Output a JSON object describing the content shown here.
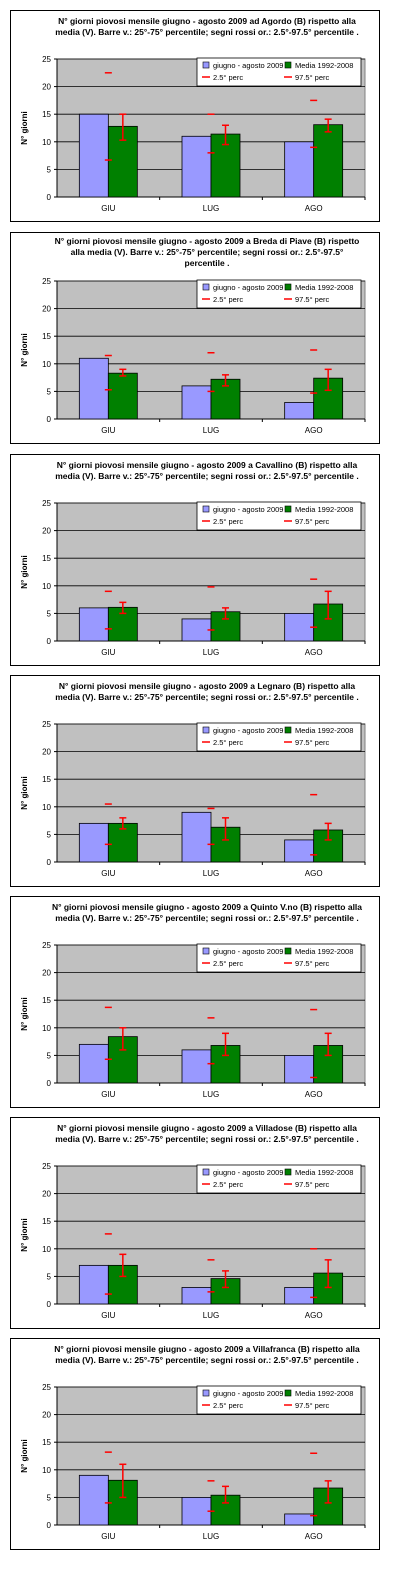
{
  "colors": {
    "plot_bg": "#c0c0c0",
    "bar_2009": "#9999ff",
    "bar_media": "#008000",
    "whisker": "#ff0000",
    "grid": "#000000"
  },
  "legend": {
    "series_2009": "giugno - agosto 2009",
    "series_media": "Media 1992-2008",
    "p25": "2.5° perc",
    "p975": "97.5° perc"
  },
  "chart_data": [
    {
      "type": "bar",
      "title_lines": [
        "N° giorni piovosi mensile giugno - agosto 2009 ad Agordo (B) rispetto alla",
        "media (V). Barre v.: 25°-75° percentile; segni rossi or.: 2.5°-97.5° percentile ."
      ],
      "ylabel": "N° giorni",
      "ylim": [
        0,
        25
      ],
      "yticks": [
        "0",
        "5",
        "10",
        "15",
        "20",
        "25"
      ],
      "categories": [
        "GIU",
        "LUG",
        "AGO"
      ],
      "series": [
        {
          "name": "giugno - agosto 2009",
          "values": [
            15,
            11,
            10
          ]
        },
        {
          "name": "Media 1992-2008",
          "values": [
            12.8,
            11.4,
            13.1
          ]
        }
      ],
      "p25_75": [
        [
          10.3,
          15.0
        ],
        [
          9.5,
          13.0
        ],
        [
          11.8,
          14.1
        ]
      ],
      "p2_5": [
        6.7,
        8.0,
        9.0
      ],
      "p97_5": [
        22.5,
        15.0,
        17.5
      ]
    },
    {
      "type": "bar",
      "title_lines": [
        "N° giorni piovosi mensile giugno - agosto 2009 a Breda di Piave (B) rispetto",
        "alla media (V). Barre v.: 25°-75° percentile; segni rossi or.: 2.5°-97.5°",
        "percentile ."
      ],
      "ylabel": "N° giorni",
      "ylim": [
        0,
        25
      ],
      "yticks": [
        "0",
        "5",
        "10",
        "15",
        "20",
        "25"
      ],
      "categories": [
        "GIU",
        "LUG",
        "AGO"
      ],
      "series": [
        {
          "name": "giugno - agosto 2009",
          "values": [
            11,
            6,
            3
          ]
        },
        {
          "name": "Media 1992-2008",
          "values": [
            8.3,
            7.2,
            7.4
          ]
        }
      ],
      "p25_75": [
        [
          7.8,
          9.0
        ],
        [
          6.0,
          8.0
        ],
        [
          5.2,
          9.0
        ]
      ],
      "p2_5": [
        5.3,
        5.0,
        4.7
      ],
      "p97_5": [
        11.5,
        12.0,
        12.5
      ]
    },
    {
      "type": "bar",
      "title_lines": [
        "N° giorni piovosi mensile giugno - agosto 2009 a Cavallino (B) rispetto alla",
        "media (V). Barre v.: 25°-75° percentile; segni rossi or.: 2.5°-97.5° percentile ."
      ],
      "ylabel": "N° giorni",
      "ylim": [
        0,
        25
      ],
      "yticks": [
        "0",
        "5",
        "10",
        "15",
        "20",
        "25"
      ],
      "categories": [
        "GIU",
        "LUG",
        "AGO"
      ],
      "series": [
        {
          "name": "giugno - agosto 2009",
          "values": [
            6,
            4,
            5
          ]
        },
        {
          "name": "Media 1992-2008",
          "values": [
            6.1,
            5.3,
            6.7
          ]
        }
      ],
      "p25_75": [
        [
          5.0,
          7.0
        ],
        [
          4.0,
          6.0
        ],
        [
          4.0,
          9.0
        ]
      ],
      "p2_5": [
        2.2,
        2.0,
        2.5
      ],
      "p97_5": [
        9.0,
        9.8,
        11.2
      ]
    },
    {
      "type": "bar",
      "title_lines": [
        "N° giorni piovosi mensile giugno - agosto 2009 a Legnaro (B) rispetto alla",
        "media (V). Barre v.: 25°-75° percentile; segni rossi or.: 2.5°-97.5° percentile ."
      ],
      "ylabel": "N° giorni",
      "ylim": [
        0,
        25
      ],
      "yticks": [
        "0",
        "5",
        "10",
        "15",
        "20",
        "25"
      ],
      "categories": [
        "GIU",
        "LUG",
        "AGO"
      ],
      "series": [
        {
          "name": "giugno - agosto 2009",
          "values": [
            7,
            9,
            4
          ]
        },
        {
          "name": "Media 1992-2008",
          "values": [
            7.0,
            6.3,
            5.8
          ]
        }
      ],
      "p25_75": [
        [
          6.0,
          8.0
        ],
        [
          4.0,
          8.0
        ],
        [
          4.0,
          7.0
        ]
      ],
      "p2_5": [
        3.2,
        3.2,
        1.3
      ],
      "p97_5": [
        10.5,
        9.7,
        12.2
      ]
    },
    {
      "type": "bar",
      "title_lines": [
        "N° giorni piovosi mensile giugno - agosto 2009 a Quinto V.no (B) rispetto alla",
        "media (V). Barre v.: 25°-75° percentile; segni rossi or.: 2.5°-97.5° percentile ."
      ],
      "ylabel": "N° giorni",
      "ylim": [
        0,
        25
      ],
      "yticks": [
        "0",
        "5",
        "10",
        "15",
        "20",
        "25"
      ],
      "categories": [
        "GIU",
        "LUG",
        "AGO"
      ],
      "series": [
        {
          "name": "giugno - agosto 2009",
          "values": [
            7,
            6,
            5
          ]
        },
        {
          "name": "Media 1992-2008",
          "values": [
            8.4,
            6.8,
            6.8
          ]
        }
      ],
      "p25_75": [
        [
          6.0,
          10.0
        ],
        [
          5.0,
          9.0
        ],
        [
          5.0,
          9.0
        ]
      ],
      "p2_5": [
        4.3,
        3.5,
        1.0
      ],
      "p97_5": [
        13.7,
        11.8,
        13.3
      ]
    },
    {
      "type": "bar",
      "title_lines": [
        "N° giorni piovosi mensile giugno - agosto 2009 a Villadose (B) rispetto alla",
        "media (V). Barre v.: 25°-75° percentile; segni rossi or.: 2.5°-97.5° percentile ."
      ],
      "ylabel": "N° giorni",
      "ylim": [
        0,
        25
      ],
      "yticks": [
        "0",
        "5",
        "10",
        "15",
        "20",
        "25"
      ],
      "categories": [
        "GIU",
        "LUG",
        "AGO"
      ],
      "series": [
        {
          "name": "giugno - agosto 2009",
          "values": [
            7,
            3,
            3
          ]
        },
        {
          "name": "Media 1992-2008",
          "values": [
            7.0,
            4.6,
            5.6
          ]
        }
      ],
      "p25_75": [
        [
          5.0,
          9.0
        ],
        [
          3.0,
          6.0
        ],
        [
          3.0,
          8.0
        ]
      ],
      "p2_5": [
        1.8,
        2.2,
        1.2
      ],
      "p97_5": [
        12.7,
        8.0,
        10.0
      ]
    },
    {
      "type": "bar",
      "title_lines": [
        "N° giorni piovosi mensile giugno - agosto 2009 a Villafranca (B) rispetto alla",
        "media (V). Barre v.: 25°-75° percentile; segni rossi or.: 2.5°-97.5° percentile ."
      ],
      "ylabel": "N° giorni",
      "ylim": [
        0,
        25
      ],
      "yticks": [
        "0",
        "5",
        "10",
        "15",
        "20",
        "25"
      ],
      "categories": [
        "GIU",
        "LUG",
        "AGO"
      ],
      "series": [
        {
          "name": "giugno - agosto 2009",
          "values": [
            9,
            5,
            2
          ]
        },
        {
          "name": "Media 1992-2008",
          "values": [
            8.1,
            5.4,
            6.7
          ]
        }
      ],
      "p25_75": [
        [
          5.0,
          11.0
        ],
        [
          4.0,
          7.0
        ],
        [
          4.0,
          8.0
        ]
      ],
      "p2_5": [
        4.0,
        2.5,
        1.7
      ],
      "p97_5": [
        13.2,
        8.0,
        13.0
      ]
    }
  ]
}
